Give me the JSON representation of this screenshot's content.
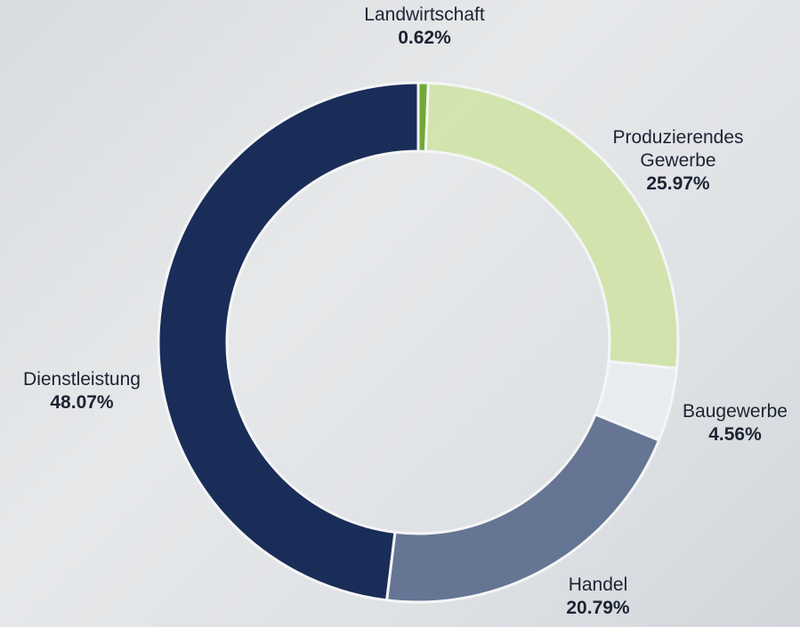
{
  "chart_data": {
    "type": "donut",
    "categories": [
      "Landwirtschaft",
      "Produzierendes Gewerbe",
      "Baugewerbe",
      "Handel",
      "Dienstleistung"
    ],
    "values": [
      0.62,
      25.97,
      4.56,
      20.79,
      48.07
    ],
    "value_labels": [
      "0.62%",
      "25.97%",
      "4.56%",
      "20.79%",
      "48.07%"
    ],
    "colors": [
      "#6aa52b",
      "#cfe3a3",
      "#e9ecef",
      "#5e6f8e",
      "#0f2350"
    ]
  }
}
